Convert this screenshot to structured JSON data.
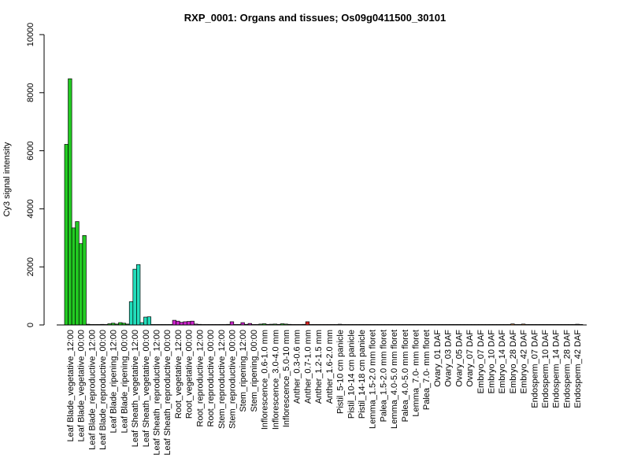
{
  "chart_data": {
    "type": "bar",
    "title": "RXP_0001: Organs and tissues; Os09g0411500_30101",
    "ylabel": "Cy3 signal intensity",
    "xlabel": "",
    "ylim": [
      0,
      10000
    ],
    "yticks": [
      0,
      2000,
      4000,
      6000,
      8000,
      10000
    ],
    "grid": false,
    "legend": "none",
    "colors": {
      "green": "#22cc22",
      "teal": "#22ddbb",
      "magenta": "#cc22cc",
      "red": "#dd2222",
      "gray": "#999999",
      "orange": "#dd7722",
      "outline": "#000000"
    },
    "groups": [
      {
        "label": "Leaf Blade_vegetative_12:00",
        "color": "green",
        "values": [
          6220,
          8480,
          3340
        ]
      },
      {
        "label": "Leaf Blade_vegetative_00:00",
        "color": "green",
        "values": [
          3560,
          2800,
          3080
        ]
      },
      {
        "label": "Leaf Blade_reproductive_12:00",
        "color": "green",
        "values": [
          25,
          15,
          10
        ]
      },
      {
        "label": "Leaf Blade_reproductive_00:00",
        "color": "green",
        "values": [
          15,
          20,
          15
        ]
      },
      {
        "label": "Leaf Blade_ripening_12:00",
        "color": "green",
        "values": [
          40,
          60,
          30
        ]
      },
      {
        "label": "Leaf Blade_ripening_00:00",
        "color": "green",
        "values": [
          80,
          60,
          30
        ]
      },
      {
        "label": "Leaf Sheath_vegetative_12:00",
        "color": "teal",
        "values": [
          800,
          1920,
          2080
        ]
      },
      {
        "label": "Leaf Sheath_vegetative_00:00",
        "color": "teal",
        "values": [
          80,
          270,
          280
        ]
      },
      {
        "label": "Leaf Sheath_reproductive_12:00",
        "color": "teal",
        "values": [
          10,
          8,
          6
        ]
      },
      {
        "label": "Leaf Sheath_reproductive_00:00",
        "color": "teal",
        "values": [
          8,
          6,
          5
        ]
      },
      {
        "label": "Root_vegetative_12:00",
        "color": "magenta",
        "values": [
          160,
          130,
          90
        ]
      },
      {
        "label": "Root_vegetative_00:00",
        "color": "magenta",
        "values": [
          110,
          120,
          130
        ]
      },
      {
        "label": "Root_reproductive_12:00",
        "color": "magenta",
        "values": [
          30,
          20,
          15
        ]
      },
      {
        "label": "Root_reproductive_00:00",
        "color": "magenta",
        "values": [
          15,
          10,
          8
        ]
      },
      {
        "label": "Stem_reproductive_12:00",
        "color": "magenta",
        "values": [
          12,
          10,
          8
        ]
      },
      {
        "label": "Stem_reproductive_00:00",
        "color": "magenta",
        "values": [
          20,
          110,
          10
        ]
      },
      {
        "label": "Stem_ripening_12:00",
        "color": "magenta",
        "values": [
          10,
          80,
          20
        ]
      },
      {
        "label": "Stem_ripening_00:00",
        "color": "magenta",
        "values": [
          50,
          15,
          8
        ]
      },
      {
        "label": "Inflorescence_0.6-1.0 mm",
        "color": "green",
        "values": [
          30,
          40,
          20
        ]
      },
      {
        "label": "Inflorescence_3.0-4.0 mm",
        "color": "green",
        "values": [
          25,
          30,
          20
        ]
      },
      {
        "label": "Inflorescence_5.0-10 mm",
        "color": "green",
        "values": [
          40,
          30,
          20
        ]
      },
      {
        "label": "Anther_0.3-0.6 mm",
        "color": "red",
        "values": [
          15,
          10,
          5
        ]
      },
      {
        "label": "Anther_0.7-1.0 mm",
        "color": "red",
        "values": [
          20,
          110,
          5
        ]
      },
      {
        "label": "Anther_1.2-1.5 mm",
        "color": "red",
        "values": [
          8,
          5,
          4
        ]
      },
      {
        "label": "Anther_1.6-2.0 mm",
        "color": "red",
        "values": [
          6,
          5,
          3
        ]
      },
      {
        "label": "Pistil_5-10 cm panicle",
        "color": "gray",
        "values": [
          10,
          25,
          15
        ]
      },
      {
        "label": "Pistil_10-14 cm panicle",
        "color": "gray",
        "values": [
          8,
          10,
          6
        ]
      },
      {
        "label": "Pistil_14-18 cm panicle",
        "color": "gray",
        "values": [
          6,
          8,
          5
        ]
      },
      {
        "label": "Lemma_1.5-2.0 mm floret",
        "color": "gray",
        "values": [
          5,
          6,
          4
        ]
      },
      {
        "label": "Palea_1.5-2.0 mm floret",
        "color": "gray",
        "values": [
          5,
          5,
          4
        ]
      },
      {
        "label": "Lemma_4.0-5.0 mm floret",
        "color": "gray",
        "values": [
          4,
          5,
          3
        ]
      },
      {
        "label": "Palea_4.0-5.0 mm floret",
        "color": "gray",
        "values": [
          4,
          4,
          3
        ]
      },
      {
        "label": "Lemma_7.0- mm floret",
        "color": "gray",
        "values": [
          4,
          5,
          3
        ]
      },
      {
        "label": "Palea_7.0- mm floret",
        "color": "gray",
        "values": [
          3,
          4,
          3
        ]
      },
      {
        "label": "Ovary_01 DAF",
        "color": "gray",
        "values": [
          5,
          6,
          4
        ]
      },
      {
        "label": "Ovary_03 DAF",
        "color": "gray",
        "values": [
          5,
          5,
          4
        ]
      },
      {
        "label": "Ovary_05 DAF",
        "color": "gray",
        "values": [
          4,
          5,
          3
        ]
      },
      {
        "label": "Ovary_07 DAF",
        "color": "gray",
        "values": [
          4,
          4,
          3
        ]
      },
      {
        "label": "Embryo_07 DAF",
        "color": "orange",
        "values": [
          4,
          5,
          3
        ]
      },
      {
        "label": "Embryo_10 DAF",
        "color": "orange",
        "values": [
          4,
          4,
          3
        ]
      },
      {
        "label": "Embryo_14 DAF",
        "color": "orange",
        "values": [
          5,
          5,
          4
        ]
      },
      {
        "label": "Embryo_28 DAF",
        "color": "orange",
        "values": [
          15,
          35,
          10
        ]
      },
      {
        "label": "Embryo_42 DAF",
        "color": "orange",
        "values": [
          10,
          30,
          8
        ]
      },
      {
        "label": "Endosperm_07 DAF",
        "color": "gray",
        "values": [
          5,
          6,
          4
        ]
      },
      {
        "label": "Endosperm_10 DAF",
        "color": "gray",
        "values": [
          4,
          5,
          3
        ]
      },
      {
        "label": "Endosperm_14 DAF",
        "color": "gray",
        "values": [
          4,
          4,
          3
        ]
      },
      {
        "label": "Endosperm_28 DAF",
        "color": "gray",
        "values": [
          4,
          5,
          3
        ]
      },
      {
        "label": "Endosperm_42 DAF",
        "color": "gray",
        "values": [
          6,
          25,
          8
        ]
      }
    ],
    "shown_tick_labels": [
      "Leaf Blade_vegetative_12:00",
      "Leaf Blade_vegetative_00:00",
      "Leaf Blade_reproductive_12:00",
      "Leaf Blade_reproductive_00:00",
      "Leaf Blade_ripening_12:00",
      "Leaf Blade_ripening_00:00",
      "Leaf Sheath_vegetative_12:00",
      "Leaf Sheath_vegetative_00:00",
      "Leaf Sheath_reproductive_12:00",
      "Leaf Sheath_reproductive_00:00",
      "Root_vegetative_12:00",
      "Root_vegetative_00:00",
      "Root_reproductive_12:00",
      "Root_reproductive_00:00",
      "Stem_reproductive_12:00",
      "Stem_reproductive_00:00",
      "Stem_ripening_12:00",
      "Stem_ripening_00:00",
      "Inflorescence_0.6-1.0 mm",
      "Inflorescence_3.0-4.0 mm",
      "Inflorescence_5.0-10 mm",
      "Anther_0.3-0.6 mm",
      "Anther_0.7-1.0 mm",
      "Anther_1.2-1.5 mm",
      "Anther_1.6-2.0 mm",
      "Pistil_5-10 cm panicle",
      "Pistil_10-14 cm panicle",
      "Pistil_14-18 cm panicle",
      "Lemma_1.5-2.0 mm floret",
      "Palea_1.5-2.0 mm floret",
      "Lemma_4.0-5.0 mm floret",
      "Palea_4.0-5.0 mm floret",
      "Lemma_7.0- mm floret",
      "Palea_7.0- mm floret",
      "Ovary_01 DAF",
      "Ovary_03 DAF",
      "Ovary_05 DAF",
      "Ovary_07 DAF",
      "Embryo_07 DAF",
      "Embryo_10 DAF",
      "Embryo_14 DAF",
      "Embryo_28 DAF",
      "Embryo_42 DAF",
      "Endosperm_07 DAF",
      "Endosperm_10 DAF",
      "Endosperm_14 DAF",
      "Endosperm_28 DAF",
      "Endosperm_42 DAF"
    ]
  }
}
